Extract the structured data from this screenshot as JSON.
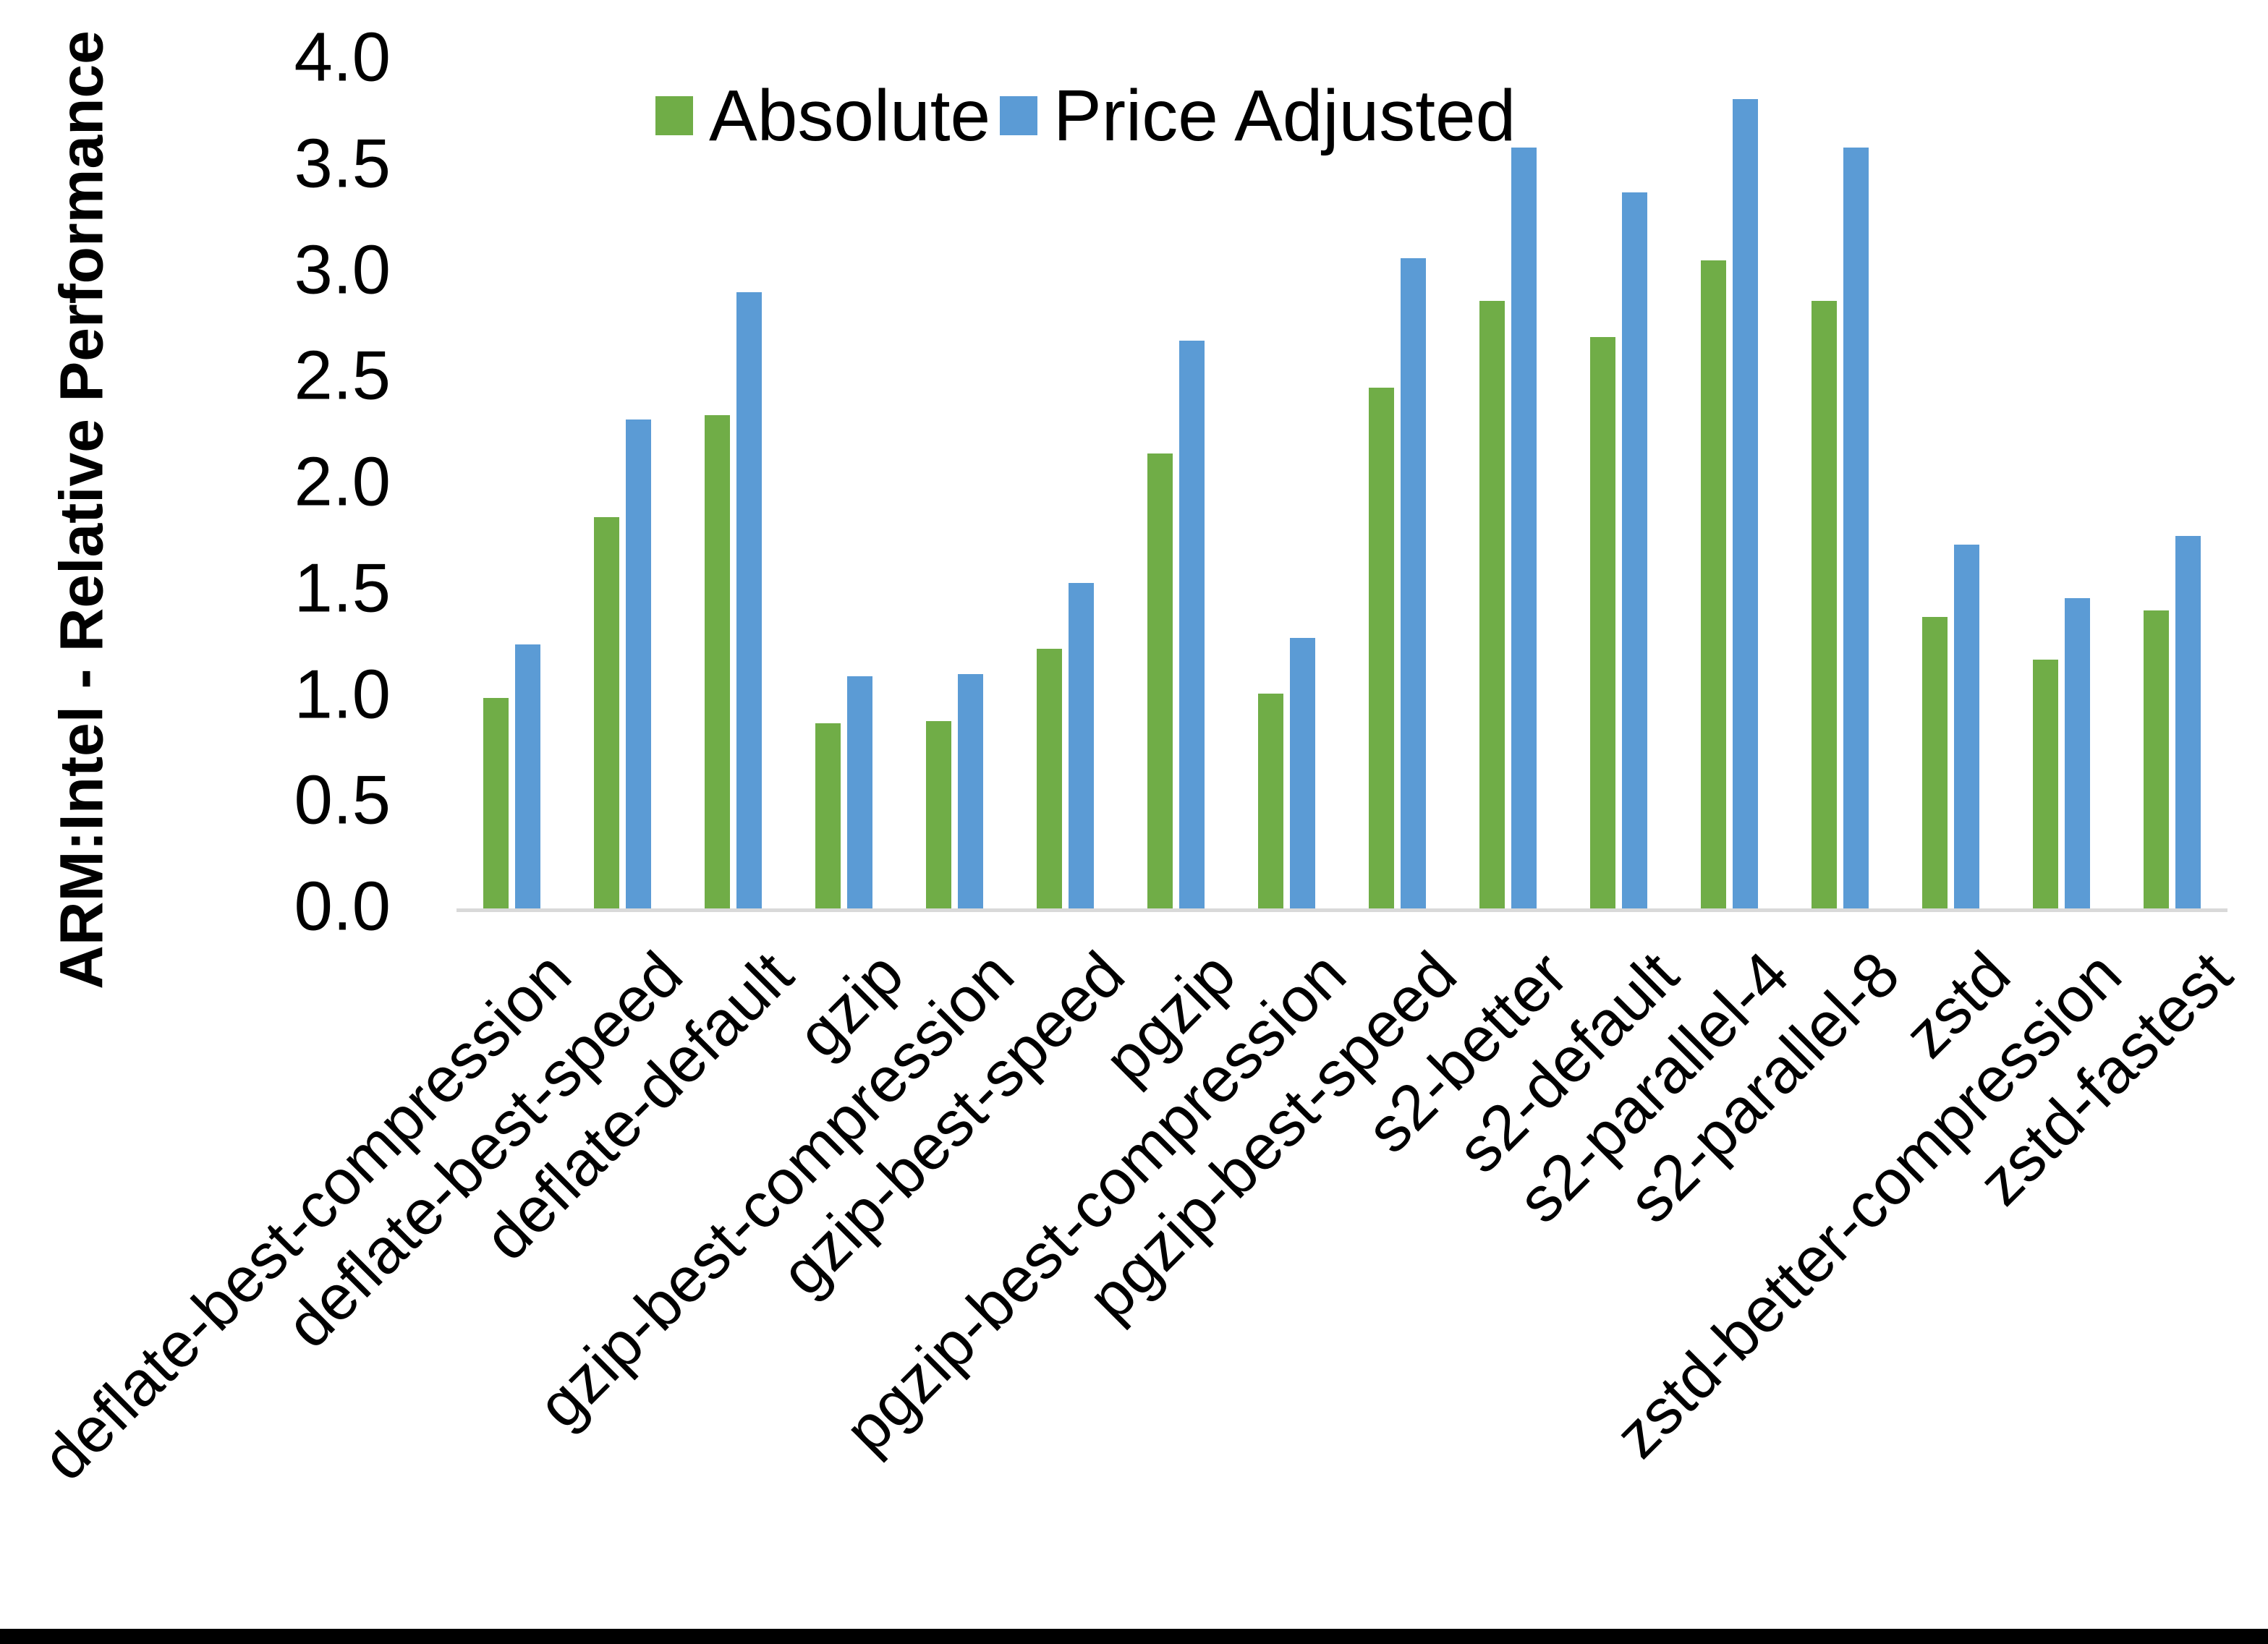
{
  "chart_data": {
    "type": "bar",
    "title": "",
    "ylabel": "ARM:Intel - Relative Performance",
    "xlabel": "",
    "ylim": [
      0.0,
      4.0
    ],
    "ytick_step": 0.5,
    "ytick_labels": [
      "0.0",
      "0.5",
      "1.0",
      "1.5",
      "2.0",
      "2.5",
      "3.0",
      "3.5",
      "4.0"
    ],
    "grid": false,
    "legend_position": "top-center-inside",
    "axis_line_color": "#d9d9d9",
    "categories": [
      "deflate-best-compression",
      "deflate-best-speed",
      "deflate-default",
      "gzip",
      "gzip-best-compression",
      "gzip-best-speed",
      "pgzip",
      "pgzip-best-compression",
      "pgzip-best-speed",
      "s2-better",
      "s2-default",
      "s2-parallel-4",
      "s2-parallel-8",
      "zstd",
      "zstd-better-compression",
      "zstd-fastest"
    ],
    "series": [
      {
        "name": "Absolute",
        "color": "#70AD47",
        "values": [
          1.0,
          1.85,
          2.33,
          0.88,
          0.89,
          1.23,
          2.15,
          1.02,
          2.46,
          2.87,
          2.7,
          3.06,
          2.87,
          1.38,
          1.18,
          1.41
        ]
      },
      {
        "name": "Price Adjusted",
        "color": "#5B9BD5",
        "values": [
          1.25,
          2.31,
          2.91,
          1.1,
          1.11,
          1.54,
          2.68,
          1.28,
          3.07,
          3.59,
          3.38,
          3.82,
          3.59,
          1.72,
          1.47,
          1.76
        ]
      }
    ]
  },
  "page": {
    "background": "#ffffff",
    "bottom_edge_bar_color": "#000000"
  }
}
